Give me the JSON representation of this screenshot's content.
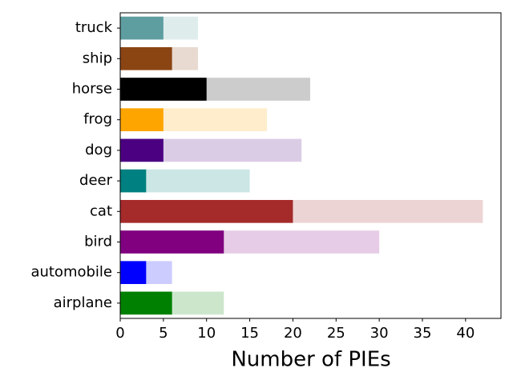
{
  "chart_data": {
    "type": "overlay-barh",
    "xlabel": "Number of PIEs",
    "categories": [
      "airplane",
      "automobile",
      "bird",
      "cat",
      "deer",
      "dog",
      "frog",
      "horse",
      "ship",
      "truck"
    ],
    "series": [
      {
        "values": [
          12,
          6,
          30,
          42,
          15,
          21,
          17,
          22,
          9,
          9
        ],
        "colors": [
          "#cce6cc",
          "#ccccff",
          "#e6cce6",
          "#edd4d4",
          "#cce6e6",
          "#dbcce6",
          "#ffedcc",
          "#cccccc",
          "#e8dad0",
          "#dfecec"
        ]
      },
      {
        "values": [
          6,
          3,
          12,
          20,
          3,
          5,
          5,
          10,
          6,
          5
        ],
        "colors": [
          "#008000",
          "#0000ff",
          "#800080",
          "#a52a2a",
          "#008080",
          "#4b0082",
          "#ffa500",
          "#000000",
          "#8b4513",
          "#5f9ea0"
        ]
      }
    ],
    "xlim": [
      0,
      44.1
    ],
    "xticks": [
      0,
      5,
      10,
      15,
      20,
      25,
      30,
      35,
      40
    ]
  }
}
